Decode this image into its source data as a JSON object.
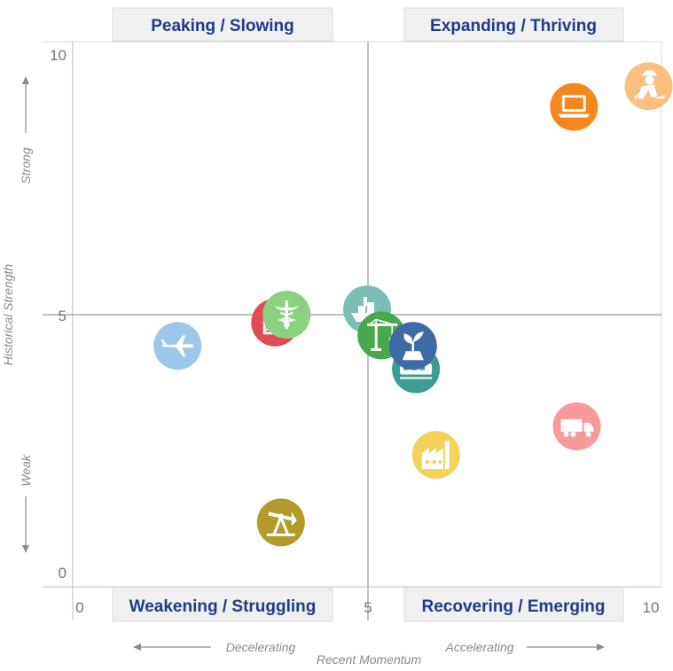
{
  "chart_data": {
    "type": "scatter",
    "title": "",
    "xlabel": "Recent Momentum",
    "ylabel": "Historical Strength",
    "xlim": [
      0,
      10
    ],
    "ylim": [
      0,
      10
    ],
    "x_ticks": [
      "0",
      "5",
      "10"
    ],
    "y_ticks": [
      "0",
      "5",
      "10"
    ],
    "divider_x": 5,
    "divider_y": 5,
    "quadrants": {
      "top_left": "Peaking / Slowing",
      "top_right": "Expanding / Thriving",
      "bottom_left": "Weakening / Struggling",
      "bottom_right": "Recovering / Emerging"
    },
    "x_direction_labels": {
      "left": "Decelerating",
      "right": "Accelerating"
    },
    "y_direction_labels": {
      "top": "Strong",
      "bottom": "Weak"
    },
    "points": [
      {
        "x": 3.5,
        "y": 1.0,
        "color": "#b39a2a",
        "icon": "oil-pump-icon"
      },
      {
        "x": 1.7,
        "y": 4.4,
        "color": "#9cc7e9",
        "icon": "airplane-icon"
      },
      {
        "x": 3.4,
        "y": 4.85,
        "color": "#e04b55",
        "icon": "book-icon"
      },
      {
        "x": 3.6,
        "y": 5.0,
        "color": "#8cd182",
        "icon": "caduceus-icon"
      },
      {
        "x": 5.0,
        "y": 5.1,
        "color": "#7cbdb6",
        "icon": "ship-icon"
      },
      {
        "x": 5.25,
        "y": 4.6,
        "color": "#46a84a",
        "icon": "crane-icon"
      },
      {
        "x": 5.85,
        "y": 3.95,
        "color": "#3f9c92",
        "icon": "train-icon"
      },
      {
        "x": 5.8,
        "y": 4.4,
        "color": "#3e6aa6",
        "icon": "plant-icon"
      },
      {
        "x": 6.2,
        "y": 2.3,
        "color": "#f4d15a",
        "icon": "factory-icon"
      },
      {
        "x": 8.65,
        "y": 2.85,
        "color": "#f79a9a",
        "icon": "truck-icon"
      },
      {
        "x": 8.6,
        "y": 9.0,
        "color": "#f5871f",
        "icon": "laptop-icon"
      },
      {
        "x": 9.9,
        "y": 9.4,
        "color": "#fbbf80",
        "icon": "construction-worker-icon"
      }
    ]
  }
}
